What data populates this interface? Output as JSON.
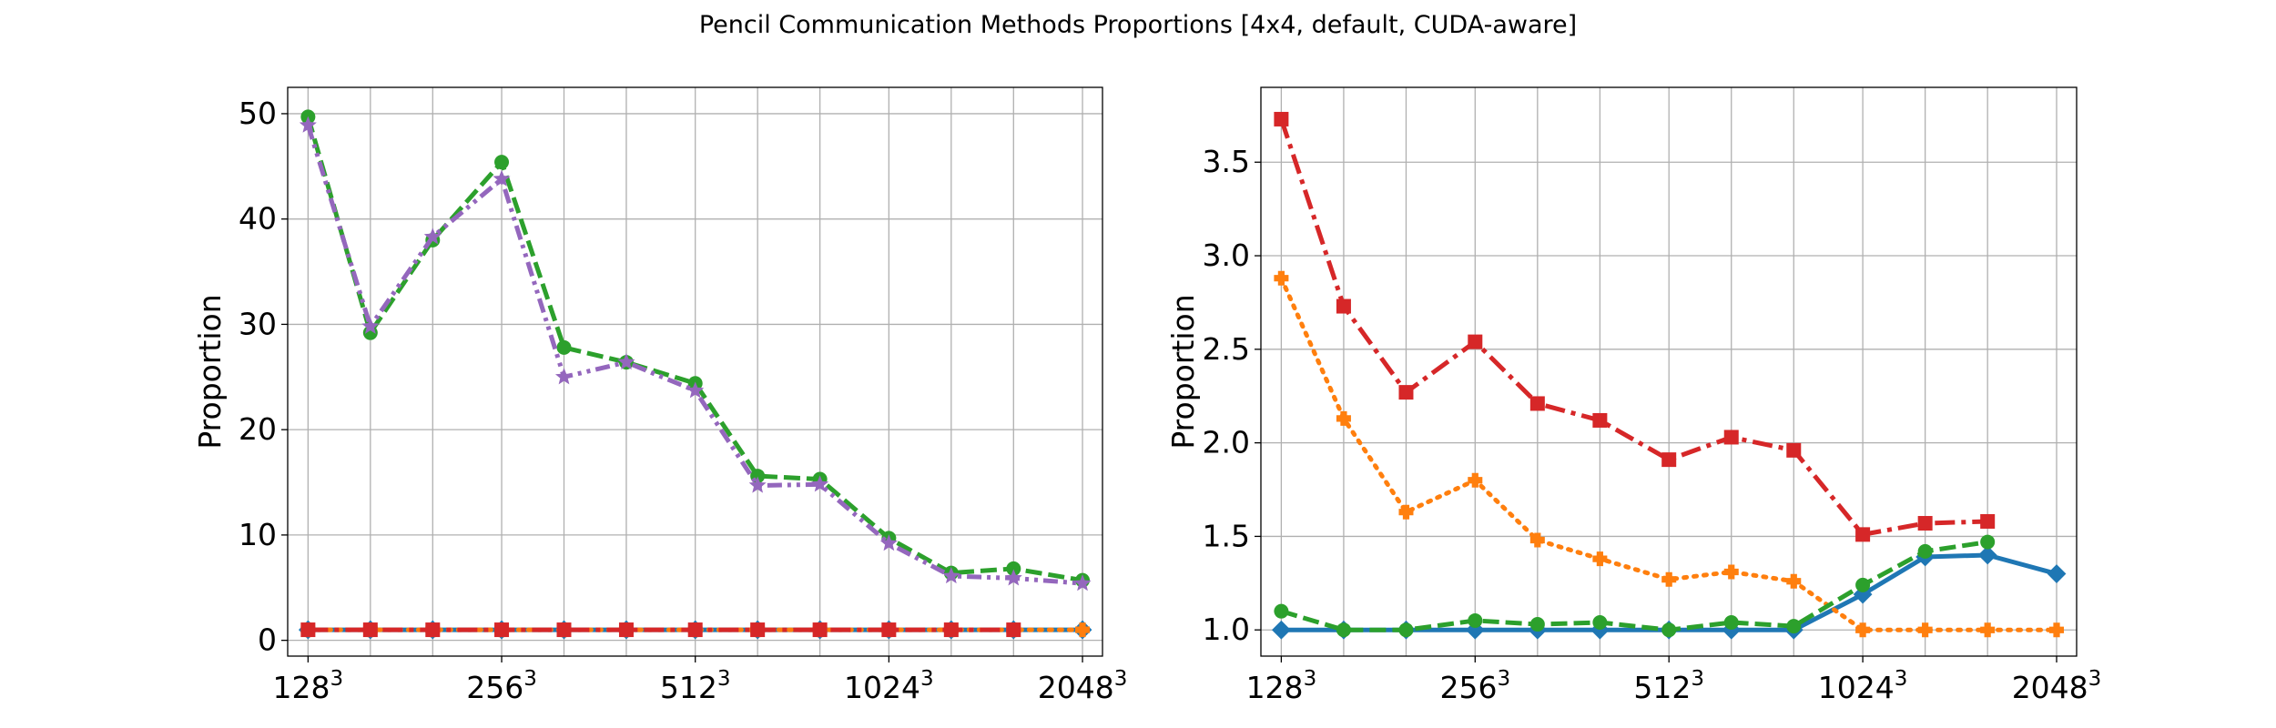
{
  "figure": {
    "title": "Pencil Communication Methods Proportions [4x4, default, CUDA-aware]"
  },
  "chart_data": [
    {
      "type": "line",
      "title": "",
      "xlabel": "",
      "ylabel": "Proportion",
      "x": [
        128,
        160,
        200,
        256,
        320,
        400,
        512,
        640,
        800,
        1024,
        1280,
        1600,
        2048
      ],
      "xtick_labels": [
        {
          "base": "128",
          "exp": "3"
        },
        {
          "base": "256",
          "exp": "3"
        },
        {
          "base": "512",
          "exp": "3"
        },
        {
          "base": "1024",
          "exp": "3"
        },
        {
          "base": "2048",
          "exp": "3"
        }
      ],
      "xtick_values": [
        128,
        256,
        512,
        1024,
        2048
      ],
      "x_scale": "log2",
      "xlim": [
        119,
        2200
      ],
      "ylim": [
        -1.5,
        52.5
      ],
      "yticks": [
        0,
        10,
        20,
        30,
        40,
        50
      ],
      "grid": true,
      "series": [
        {
          "color": "#1f77b4",
          "dash": "solid",
          "marker": "diamond",
          "values": [
            1,
            1,
            1,
            1,
            1,
            1,
            1,
            1,
            1,
            1,
            1,
            1,
            1
          ]
        },
        {
          "color": "#ff7f0e",
          "dash": "dotted",
          "marker": "plus",
          "values": [
            1,
            1,
            1,
            1,
            1,
            1,
            1,
            1,
            1,
            1,
            1,
            1,
            1
          ]
        },
        {
          "color": "#2ca02c",
          "dash": "dashed",
          "marker": "circle",
          "values": [
            49.7,
            29.2,
            38.0,
            45.4,
            27.8,
            26.4,
            24.4,
            15.6,
            15.3,
            9.7,
            6.4,
            6.8,
            5.7
          ]
        },
        {
          "color": "#9467bd",
          "dash": "dashdotdot",
          "marker": "star",
          "values": [
            48.9,
            29.8,
            38.3,
            43.8,
            25.0,
            26.4,
            23.7,
            14.7,
            14.8,
            9.2,
            6.1,
            5.9,
            5.4
          ]
        },
        {
          "color": "#d62728",
          "dash": "dashdot",
          "marker": "square",
          "values": [
            1,
            1,
            1,
            1,
            1,
            1,
            1,
            1,
            1,
            1,
            1,
            1,
            null
          ]
        }
      ]
    },
    {
      "type": "line",
      "title": "",
      "xlabel": "",
      "ylabel": "Proportion",
      "x": [
        128,
        160,
        200,
        256,
        320,
        400,
        512,
        640,
        800,
        1024,
        1280,
        1600,
        2048
      ],
      "xtick_labels": [
        {
          "base": "128",
          "exp": "3"
        },
        {
          "base": "256",
          "exp": "3"
        },
        {
          "base": "512",
          "exp": "3"
        },
        {
          "base": "1024",
          "exp": "3"
        },
        {
          "base": "2048",
          "exp": "3"
        }
      ],
      "xtick_values": [
        128,
        256,
        512,
        1024,
        2048
      ],
      "x_scale": "log2",
      "xlim": [
        119,
        2200
      ],
      "ylim": [
        0.86,
        3.9
      ],
      "yticks": [
        1.0,
        1.5,
        2.0,
        2.5,
        3.0,
        3.5
      ],
      "grid": true,
      "series": [
        {
          "color": "#1f77b4",
          "dash": "solid",
          "marker": "diamond",
          "values": [
            1.0,
            1.0,
            1.0,
            1.0,
            1.0,
            1.0,
            1.0,
            1.0,
            1.0,
            1.19,
            1.39,
            1.4,
            1.3
          ]
        },
        {
          "color": "#ff7f0e",
          "dash": "dotted",
          "marker": "plus",
          "values": [
            2.88,
            2.13,
            1.63,
            1.8,
            1.48,
            1.38,
            1.27,
            1.31,
            1.26,
            1.0,
            1.0,
            1.0,
            1.0
          ]
        },
        {
          "color": "#2ca02c",
          "dash": "dashed",
          "marker": "circle",
          "values": [
            1.1,
            1.0,
            1.0,
            1.05,
            1.03,
            1.04,
            1.0,
            1.04,
            1.02,
            1.24,
            1.42,
            1.47,
            null
          ]
        },
        {
          "color": "#d62728",
          "dash": "dashdot",
          "marker": "square",
          "values": [
            3.73,
            2.73,
            2.27,
            2.54,
            2.21,
            2.12,
            1.91,
            2.03,
            1.96,
            1.51,
            1.57,
            1.58,
            null
          ]
        }
      ]
    }
  ]
}
